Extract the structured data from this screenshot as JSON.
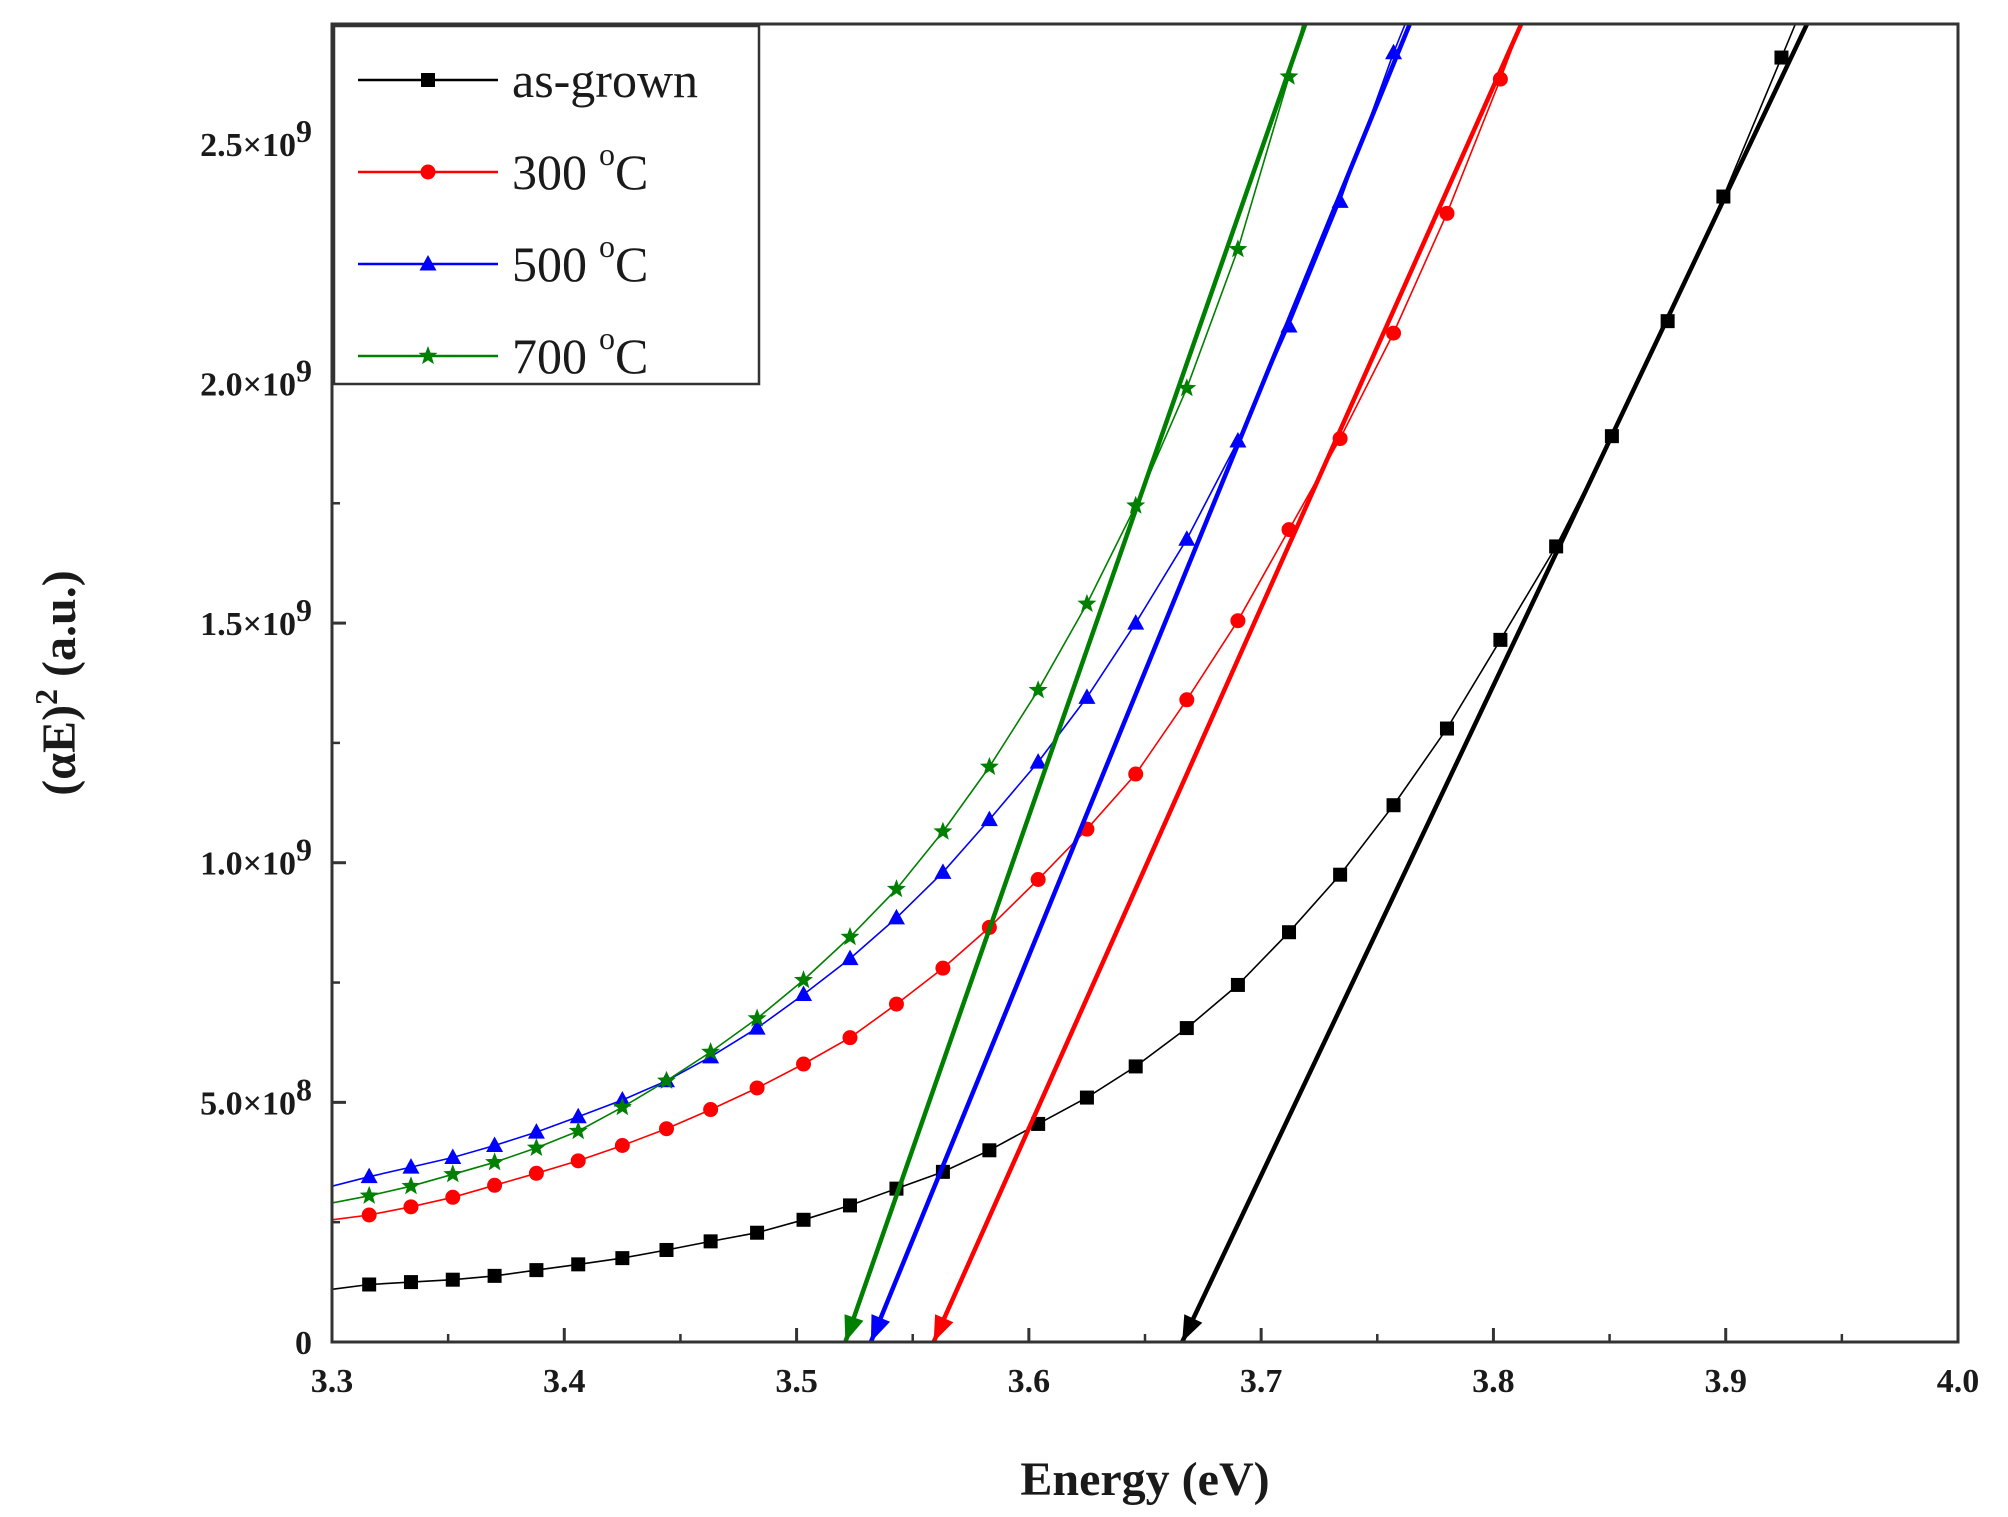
{
  "chart_data": {
    "type": "line",
    "title": "",
    "xlabel": "Energy (eV)",
    "ylabel_parts": {
      "pre": "(αE)",
      "sup": "2",
      "post": " (a.u.)"
    },
    "xlim": [
      3.3,
      4.0
    ],
    "ylim": [
      0,
      2750000000
    ],
    "x_ticks": [
      3.3,
      3.4,
      3.5,
      3.6,
      3.7,
      3.8,
      3.9,
      4.0
    ],
    "x_tick_labels": [
      "3.3",
      "3.4",
      "3.5",
      "3.6",
      "3.7",
      "3.8",
      "3.9",
      "4.0"
    ],
    "y_ticks": [
      0,
      500000000,
      1000000000,
      1500000000,
      2000000000,
      2500000000
    ],
    "y_tick_labels": [
      {
        "pre": "0",
        "sup": ""
      },
      {
        "pre": "5.0×10",
        "sup": "8"
      },
      {
        "pre": "1.0×10",
        "sup": "9"
      },
      {
        "pre": "1.5×10",
        "sup": "9"
      },
      {
        "pre": "2.0×10",
        "sup": "9"
      },
      {
        "pre": "2.5×10",
        "sup": "9"
      }
    ],
    "legend_position": "top-left",
    "grid": false,
    "series": [
      {
        "name": "as-grown",
        "color": "#000000",
        "marker": "square",
        "x": [
          3.3,
          3.316,
          3.334,
          3.352,
          3.37,
          3.388,
          3.406,
          3.425,
          3.444,
          3.463,
          3.483,
          3.503,
          3.523,
          3.543,
          3.563,
          3.583,
          3.604,
          3.625,
          3.646,
          3.668,
          3.69,
          3.712,
          3.734,
          3.757,
          3.78,
          3.803,
          3.827,
          3.851,
          3.875,
          3.899,
          3.924,
          3.93
        ],
        "y": [
          110000000,
          120000000,
          125000000,
          130000000,
          138000000,
          150000000,
          162000000,
          175000000,
          192000000,
          210000000,
          228000000,
          255000000,
          285000000,
          320000000,
          355000000,
          400000000,
          455000000,
          510000000,
          575000000,
          655000000,
          745000000,
          855000000,
          975000000,
          1120000000,
          1280000000,
          1465000000,
          1660000000,
          1890000000,
          2130000000,
          2390000000,
          2680000000,
          2750000000
        ],
        "label_name": "as-grown",
        "label_temp": "",
        "fit_line": {
          "x": [
            3.666,
            3.935
          ],
          "y": [
            0,
            2750000000
          ]
        }
      },
      {
        "name": "300 °C",
        "color": "#ff0000",
        "marker": "circle",
        "x": [
          3.3,
          3.316,
          3.334,
          3.352,
          3.37,
          3.388,
          3.406,
          3.425,
          3.444,
          3.463,
          3.483,
          3.503,
          3.523,
          3.543,
          3.563,
          3.583,
          3.604,
          3.625,
          3.646,
          3.668,
          3.69,
          3.712,
          3.734,
          3.757,
          3.78,
          3.803,
          3.812
        ],
        "y": [
          255000000,
          265000000,
          282000000,
          302000000,
          327000000,
          352000000,
          378000000,
          410000000,
          445000000,
          485000000,
          530000000,
          580000000,
          635000000,
          705000000,
          780000000,
          865000000,
          965000000,
          1070000000,
          1185000000,
          1340000000,
          1505000000,
          1695000000,
          1885000000,
          2105000000,
          2355000000,
          2635000000,
          2750000000
        ],
        "label_name": "300",
        "label_temp": "C",
        "fit_line": {
          "x": [
            3.559,
            3.812
          ],
          "y": [
            0,
            2750000000
          ]
        }
      },
      {
        "name": "500 °C",
        "color": "#0000ff",
        "marker": "triangle",
        "x": [
          3.3,
          3.316,
          3.334,
          3.352,
          3.37,
          3.388,
          3.406,
          3.425,
          3.444,
          3.463,
          3.483,
          3.503,
          3.523,
          3.543,
          3.563,
          3.583,
          3.604,
          3.625,
          3.646,
          3.668,
          3.69,
          3.712,
          3.734,
          3.757,
          3.762
        ],
        "y": [
          325000000,
          345000000,
          365000000,
          385000000,
          410000000,
          438000000,
          470000000,
          505000000,
          545000000,
          595000000,
          655000000,
          725000000,
          800000000,
          885000000,
          980000000,
          1090000000,
          1210000000,
          1345000000,
          1500000000,
          1675000000,
          1880000000,
          2120000000,
          2380000000,
          2690000000,
          2750000000
        ],
        "label_name": "500",
        "label_temp": "C",
        "fit_line": {
          "x": [
            3.532,
            3.764
          ],
          "y": [
            0,
            2750000000
          ]
        }
      },
      {
        "name": "700 °C",
        "color": "#008000",
        "marker": "star",
        "x": [
          3.3,
          3.316,
          3.334,
          3.352,
          3.37,
          3.388,
          3.406,
          3.425,
          3.444,
          3.463,
          3.483,
          3.503,
          3.523,
          3.543,
          3.563,
          3.583,
          3.604,
          3.625,
          3.646,
          3.668,
          3.69,
          3.712,
          3.718
        ],
        "y": [
          290000000,
          305000000,
          325000000,
          350000000,
          375000000,
          405000000,
          440000000,
          490000000,
          545000000,
          605000000,
          675000000,
          755000000,
          845000000,
          945000000,
          1065000000,
          1200000000,
          1360000000,
          1540000000,
          1745000000,
          1990000000,
          2280000000,
          2640000000,
          2750000000
        ],
        "label_name": "700",
        "label_temp": "C",
        "fit_line": {
          "x": [
            3.521,
            3.719
          ],
          "y": [
            0,
            2750000000
          ]
        }
      }
    ]
  }
}
